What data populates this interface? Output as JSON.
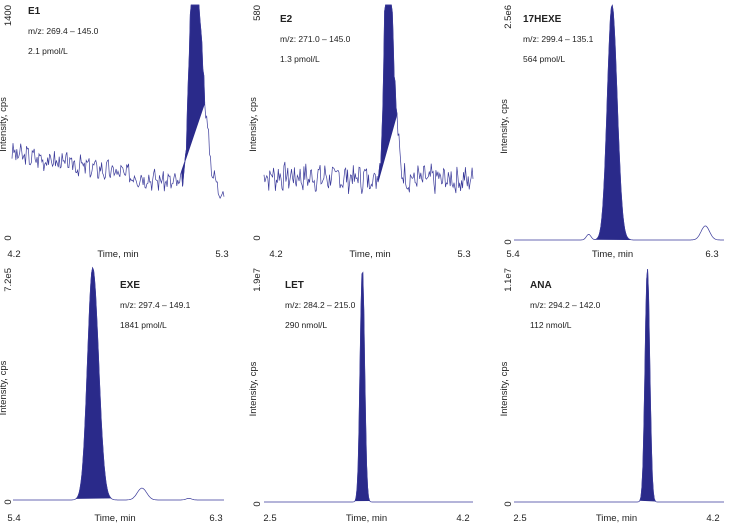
{
  "figure": {
    "ylabel": "Intensity, cps",
    "xlabel": "Time, min",
    "trace_color": "#3a3a9a",
    "peak_fill": "#2a2a8a"
  },
  "chart_data": [
    {
      "type": "line",
      "title": "E1",
      "mrm": "m/z: 269.4 – 145.0",
      "conc": "2.1 pmol/L",
      "xlim": [
        4.2,
        5.3
      ],
      "x_ticks": [
        "4.2",
        "5.3"
      ],
      "ymin_label": "0",
      "ymax_label": "1400",
      "ylim": [
        0,
        1400
      ],
      "noise_level": 360,
      "noise_start": 500,
      "noise_end": 270,
      "noise_amp": 110,
      "noise_seed": 3,
      "baseline_pts": [],
      "peak": {
        "rt": 5.14,
        "height": 1400,
        "sigma": 0.019,
        "tail": 0.045,
        "fill_start": 5.08,
        "fill_end": 5.2
      }
    },
    {
      "type": "line",
      "title": "E2",
      "mrm": "m/z: 271.0 – 145.0",
      "conc": "1.3 pmol/L",
      "xlim": [
        4.2,
        5.3
      ],
      "x_ticks": [
        "4.2",
        "5.3"
      ],
      "ymin_label": "0",
      "ymax_label": "580",
      "ylim": [
        0,
        580
      ],
      "noise_level": 140,
      "noise_start": 150,
      "noise_end": 140,
      "noise_amp": 60,
      "noise_seed": 7,
      "baseline_pts": [],
      "peak": {
        "rt": 4.85,
        "height": 580,
        "sigma": 0.017,
        "tail": 0.03,
        "fill_start": 4.8,
        "fill_end": 4.9
      }
    },
    {
      "type": "line",
      "title": "17HEXE",
      "mrm": "m/z: 299.4 – 135.1",
      "conc": "564 pmol/L",
      "xlim": [
        5.4,
        6.3
      ],
      "x_ticks": [
        "5.4",
        "6.3"
      ],
      "ymin_label": "0",
      "ymax_label": "2.5e6",
      "ylim": [
        0,
        2500000
      ],
      "noise_level": 0,
      "noise_start": 0,
      "noise_end": 0,
      "noise_amp": 0,
      "noise_seed": 1,
      "baseline_pts": [
        [
          5.72,
          60000,
          0.01
        ],
        [
          6.22,
          150000,
          0.018
        ]
      ],
      "peak": {
        "rt": 5.82,
        "height": 2500000,
        "sigma": 0.02,
        "tail": 0.022,
        "fill_start": 5.75,
        "fill_end": 5.9
      }
    },
    {
      "type": "line",
      "title": "EXE",
      "mrm": "m/z: 297.4 – 149.1",
      "conc": "1841 pmol/L",
      "xlim": [
        5.4,
        6.3
      ],
      "x_ticks": [
        "5.4",
        "6.3"
      ],
      "ymin_label": "0",
      "ymax_label": "7.2e5",
      "ylim": [
        0,
        720000
      ],
      "noise_level": 0,
      "noise_start": 0,
      "noise_end": 0,
      "noise_amp": 0,
      "noise_seed": 1,
      "baseline_pts": [
        [
          5.95,
          37000,
          0.02
        ],
        [
          6.15,
          5000,
          0.012
        ]
      ],
      "peak": {
        "rt": 5.74,
        "height": 720000,
        "sigma": 0.022,
        "tail": 0.025,
        "fill_start": 5.67,
        "fill_end": 5.82
      }
    },
    {
      "type": "line",
      "title": "LET",
      "mrm": "m/z: 284.2 – 215.0",
      "conc": "290 nmol/L",
      "xlim": [
        2.5,
        4.2
      ],
      "x_ticks": [
        "2.5",
        "4.2"
      ],
      "ymin_label": "0",
      "ymax_label": "1.9e7",
      "ylim": [
        0,
        19000000
      ],
      "noise_level": 0,
      "noise_start": 0,
      "noise_end": 0,
      "noise_amp": 0,
      "noise_seed": 1,
      "baseline_pts": [],
      "peak": {
        "rt": 3.3,
        "height": 19000000,
        "sigma": 0.018,
        "tail": 0.018,
        "fill_start": 3.24,
        "fill_end": 3.36
      }
    },
    {
      "type": "line",
      "title": "ANA",
      "mrm": "m/z: 294.2 – 142.0",
      "conc": "112 nmol/L",
      "xlim": [
        2.5,
        4.2
      ],
      "x_ticks": [
        "2.5",
        "4.2"
      ],
      "ymin_label": "0",
      "ymax_label": "1.1e7",
      "ylim": [
        0,
        11000000
      ],
      "noise_level": 0,
      "noise_start": 0,
      "noise_end": 0,
      "noise_amp": 0,
      "noise_seed": 1,
      "baseline_pts": [],
      "peak": {
        "rt": 3.58,
        "height": 11000000,
        "sigma": 0.019,
        "tail": 0.019,
        "fill_start": 3.52,
        "fill_end": 3.65
      }
    }
  ]
}
